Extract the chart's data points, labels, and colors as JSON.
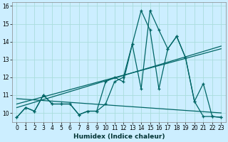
{
  "xlabel": "Humidex (Indice chaleur)",
  "bg_color": "#cceeff",
  "grid_color": "#aadddd",
  "line_color": "#006666",
  "xlim": [
    -0.5,
    23.5
  ],
  "ylim": [
    9.5,
    16.2
  ],
  "xticks": [
    0,
    1,
    2,
    3,
    4,
    5,
    6,
    7,
    8,
    9,
    10,
    11,
    12,
    13,
    14,
    15,
    16,
    17,
    18,
    19,
    20,
    21,
    22,
    23
  ],
  "yticks": [
    10,
    11,
    12,
    13,
    14,
    15,
    16
  ],
  "curve1_x": [
    0,
    1,
    2,
    3,
    4,
    5,
    6,
    7,
    8,
    9,
    10,
    11,
    12,
    13,
    14,
    15,
    16,
    17,
    18,
    19,
    20,
    21,
    22,
    23
  ],
  "curve1_y": [
    9.75,
    10.3,
    10.1,
    11.0,
    10.5,
    10.5,
    10.5,
    9.9,
    10.1,
    10.1,
    11.75,
    12.0,
    11.75,
    13.85,
    15.75,
    14.65,
    11.35,
    13.6,
    14.3,
    13.1,
    10.65,
    11.65,
    9.8,
    9.75
  ],
  "curve2_x": [
    0,
    1,
    2,
    3,
    4,
    5,
    6,
    7,
    8,
    9,
    10,
    11,
    12,
    13,
    14,
    15,
    16,
    17,
    18,
    19,
    20,
    21,
    22,
    23
  ],
  "curve2_y": [
    9.75,
    10.3,
    10.1,
    11.0,
    10.5,
    10.5,
    10.5,
    9.9,
    10.1,
    10.1,
    10.5,
    11.75,
    12.0,
    13.85,
    11.35,
    15.75,
    14.65,
    13.6,
    14.3,
    13.1,
    10.65,
    9.8,
    9.8,
    9.75
  ],
  "trend1_x": [
    0,
    23
  ],
  "trend1_y": [
    10.5,
    13.6
  ],
  "trend2_x": [
    0,
    23
  ],
  "trend2_y": [
    10.3,
    13.75
  ],
  "trend3_x": [
    0,
    23
  ],
  "trend3_y": [
    10.8,
    10.0
  ]
}
